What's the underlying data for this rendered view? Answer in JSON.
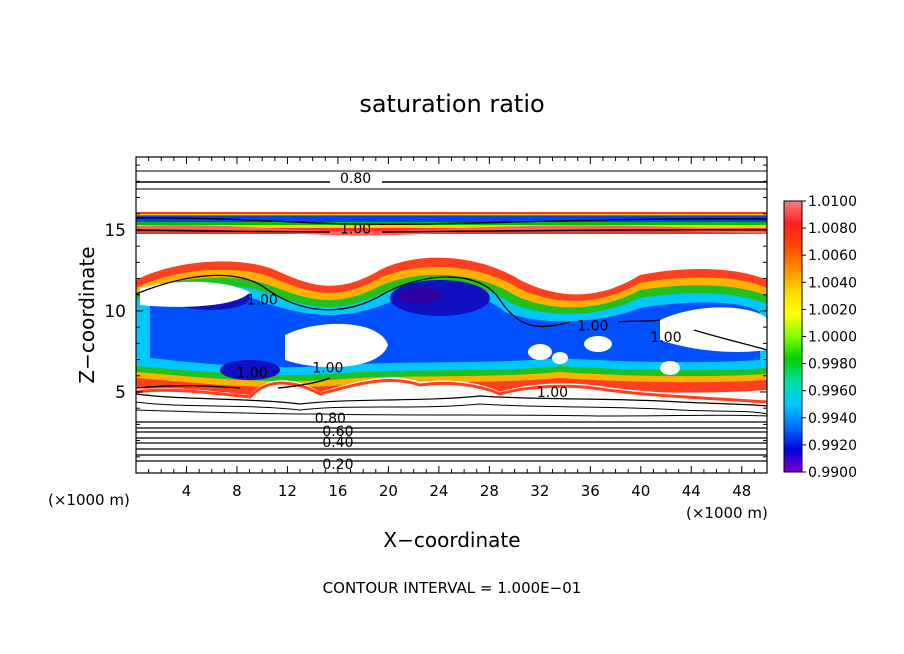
{
  "chart_data": {
    "type": "heatmap",
    "title": "saturation ratio",
    "xlabel": "X−coordinate",
    "ylabel": "Z−coordinate",
    "x_unit_left": "(×1000 m)",
    "x_unit_right": "(×1000 m)",
    "footer": "CONTOUR INTERVAL = 1.000E−01",
    "xlim": [
      0,
      50
    ],
    "ylim": [
      0,
      19.5
    ],
    "x_ticks": [
      4,
      8,
      12,
      16,
      20,
      24,
      28,
      32,
      36,
      40,
      44,
      48
    ],
    "x_tick_labels": [
      "4",
      "8",
      "12",
      "16",
      "20",
      "24",
      "28",
      "32",
      "36",
      "40",
      "44",
      "48"
    ],
    "y_ticks": [
      5,
      10,
      15
    ],
    "y_tick_labels": [
      "5",
      "10",
      "15"
    ],
    "colorbar": {
      "min": 0.99,
      "max": 1.01,
      "tick_labels": [
        "1.0100",
        "1.0080",
        "1.0060",
        "1.0040",
        "1.0020",
        "1.0000",
        "0.9980",
        "0.9960",
        "0.9940",
        "0.9920",
        "0.9900"
      ],
      "colors": [
        "#f08080",
        "#ff2020",
        "#ff4500",
        "#ff8c00",
        "#ffd700",
        "#ffff00",
        "#80ff00",
        "#00d000",
        "#00e0a0",
        "#00c8ff",
        "#0070ff",
        "#0000e0",
        "#8000c0"
      ]
    },
    "contour_labels": [
      {
        "text": "0.80",
        "x": 17.4,
        "y": 18.2
      },
      {
        "text": "1.00",
        "x": 17.4,
        "y": 15.1
      },
      {
        "text": "1.00",
        "x": 10.0,
        "y": 10.7
      },
      {
        "text": "1.00",
        "x": 36.2,
        "y": 9.1
      },
      {
        "text": "1.00",
        "x": 42.0,
        "y": 8.4
      },
      {
        "text": "1.00",
        "x": 9.2,
        "y": 6.2
      },
      {
        "text": "1.00",
        "x": 15.2,
        "y": 6.5
      },
      {
        "text": "1.00",
        "x": 33.0,
        "y": 5.0
      },
      {
        "text": "0.80",
        "x": 15.4,
        "y": 3.4
      },
      {
        "text": "0.60",
        "x": 16.0,
        "y": 2.6
      },
      {
        "text": "0.40",
        "x": 16.0,
        "y": 1.9
      },
      {
        "text": "0.20",
        "x": 16.0,
        "y": 0.55
      }
    ]
  }
}
